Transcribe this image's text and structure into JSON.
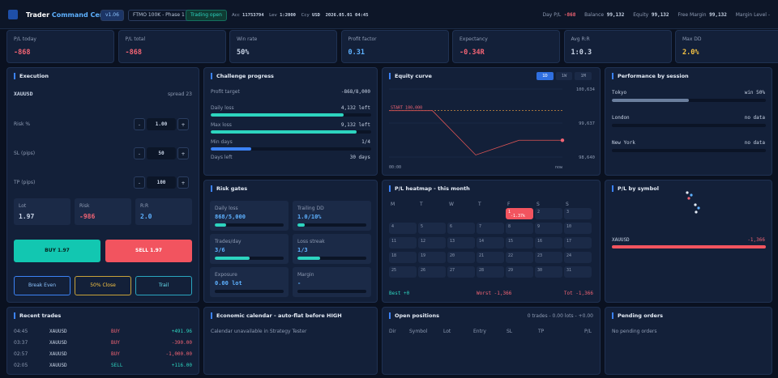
{
  "header": {
    "title": "Trader",
    "title2": "Command Center",
    "version": "v1.06",
    "account": "FTMO 100K - Phase 1",
    "status": "Trading open",
    "acc_label": "Acc",
    "acc": "11753794",
    "lev_label": "Lev",
    "lev": "1:2000",
    "ccy_label": "Ccy",
    "ccy": "USD",
    "datetime": "2026.05.01 04:45",
    "day_pl_label": "Day P/L",
    "day_pl": "-868",
    "balance_label": "Balance",
    "balance": "99,132",
    "equity_label": "Equity",
    "equity": "99,132",
    "free_margin_label": "Free Margin",
    "free_margin": "99,132",
    "margin_level": "Margin Level -"
  },
  "stats": [
    {
      "label": "P/L today",
      "value": "-868"
    },
    {
      "label": "P/L total",
      "value": "-868"
    },
    {
      "label": "Win rate",
      "value": "50%"
    },
    {
      "label": "Profit factor",
      "value": "0.31"
    },
    {
      "label": "Expectancy",
      "value": "-0.34R"
    },
    {
      "label": "Avg R:R",
      "value": "1:0.3"
    },
    {
      "label": "Max DD",
      "value": "2.0%"
    }
  ],
  "execution": {
    "title": "Execution",
    "symbol": "XAUUSD",
    "spread": "spread 23",
    "minus": "-",
    "plus": "+",
    "fields": [
      {
        "label": "Risk %",
        "value": "1.00"
      },
      {
        "label": "SL (pips)",
        "value": "50"
      },
      {
        "label": "TP (pips)",
        "value": "100"
      }
    ],
    "boxes": [
      {
        "label": "Lot",
        "value": "1.97"
      },
      {
        "label": "Risk",
        "value": "-986"
      },
      {
        "label": "R:R",
        "value": "2.0"
      }
    ],
    "buy": "BUY 1.97",
    "sell": "SELL 1.97",
    "actions": [
      "Break Even",
      "50% Close",
      "Trail"
    ]
  },
  "challenge": {
    "title": "Challenge progress",
    "target_label": "Profit target",
    "target": "-868/8,000",
    "bars": [
      {
        "label": "Daily loss",
        "value": "4,132 left",
        "fill": 83
      },
      {
        "label": "Max loss",
        "value": "9,132 left",
        "fill": 91
      },
      {
        "label": "Min days",
        "value": "1/4",
        "fill": 25
      }
    ],
    "days_label": "Days left",
    "days": "30 days"
  },
  "equity": {
    "title": "Equity curve",
    "ranges": [
      "1D",
      "1W",
      "1M"
    ],
    "start_label": "START 100,000",
    "start": 100000,
    "values": [
      100000,
      100000,
      98700,
      99132,
      99132
    ],
    "ylim": [
      98640,
      100634
    ],
    "yticks": [
      {
        "value": 98640,
        "label": "98,640"
      },
      {
        "value": 99637,
        "label": "99,637"
      },
      {
        "value": 100634,
        "label": "100,634"
      }
    ],
    "x_labels": [
      "00:00",
      "now"
    ]
  },
  "session": {
    "title": "Performance by session",
    "rows": [
      {
        "name": "Tokyo",
        "status": "win 50%",
        "fill": 50
      },
      {
        "name": "London",
        "status": "no data",
        "fill": 0
      },
      {
        "name": "New York",
        "status": "no data",
        "fill": 0
      }
    ]
  },
  "risk_gates": {
    "title": "Risk gates",
    "items": [
      {
        "label": "Daily loss",
        "value": "868/5,000",
        "fill": 17
      },
      {
        "label": "Trailing DD",
        "value": "1.0/10%",
        "fill": 10
      },
      {
        "label": "Trades/day",
        "value": "3/6",
        "fill": 50
      },
      {
        "label": "Loss streak",
        "value": "1/3",
        "fill": 33
      },
      {
        "label": "Exposure",
        "value": "0.00 lot",
        "fill": 0
      },
      {
        "label": "Margin",
        "value": "-",
        "fill": 0
      }
    ]
  },
  "heatmap": {
    "title": "P/L heatmap - this month",
    "weekdays": [
      "M",
      "T",
      "W",
      "T",
      "F",
      "S",
      "S"
    ],
    "days": [
      1,
      2,
      3,
      4,
      5,
      6,
      7,
      8,
      9,
      10,
      11,
      12,
      13,
      14,
      15,
      16,
      17,
      18,
      19,
      20,
      21,
      22,
      23,
      24,
      25,
      26,
      27,
      28,
      29,
      30,
      31
    ],
    "cell": "-1.37k",
    "best": "Best +0",
    "worst": "Worst -1,366",
    "total": "Tot -1,366"
  },
  "symbol_pl": {
    "title": "P/L by symbol",
    "symbol": "XAUUSD",
    "value": "-1,366"
  },
  "recent": {
    "title": "Recent trades",
    "rows": [
      [
        "04:45",
        "XAUUSD",
        "BUY",
        "+491.96"
      ],
      [
        "03:37",
        "XAUUSD",
        "BUY",
        "-390.00"
      ],
      [
        "02:57",
        "XAUUSD",
        "BUY",
        "-1,000.00"
      ],
      [
        "02:05",
        "XAUUSD",
        "SELL",
        "+116.00"
      ]
    ]
  },
  "calendar": {
    "title": "Economic calendar - auto-flat before HIGH",
    "message": "Calendar unavailable in Strategy Tester"
  },
  "positions": {
    "title": "Open positions",
    "summary": "0 trades - 0.00 lots - +0.00",
    "columns": [
      "Dir",
      "Symbol",
      "Lot",
      "Entry",
      "SL",
      "TP",
      "P/L"
    ]
  },
  "pending": {
    "title": "Pending orders",
    "message": "No pending orders"
  }
}
